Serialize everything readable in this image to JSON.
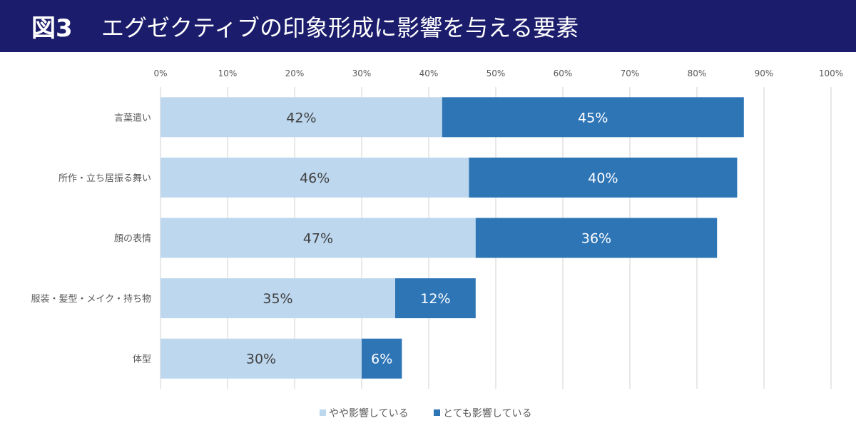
{
  "header": {
    "figure_label": "図3",
    "title": "エグゼクティブの印象形成に影響を与える要素"
  },
  "colors": {
    "header_bg": "#1b1c6b",
    "series_light": "#bdd7ee",
    "series_dark": "#2e75b6"
  },
  "chart_data": {
    "type": "bar",
    "orientation": "horizontal",
    "stacked": true,
    "title": "エグゼクティブの印象形成に影響を与える要素",
    "categories": [
      "言葉遣い",
      "所作・立ち居振る舞い",
      "顔の表情",
      "服装・髪型・メイク・持ち物",
      "体型"
    ],
    "series": [
      {
        "name": "やや影響している",
        "values": [
          42,
          46,
          47,
          35,
          30
        ],
        "labels": [
          "42%",
          "46%",
          "47%",
          "35%",
          "30%"
        ]
      },
      {
        "name": "とても影響している",
        "values": [
          45,
          40,
          36,
          12,
          6
        ],
        "labels": [
          "45%",
          "40%",
          "36%",
          "12%",
          "6%"
        ]
      }
    ],
    "xlim": [
      0,
      100
    ],
    "xticks": [
      "0%",
      "10%",
      "20%",
      "30%",
      "40%",
      "50%",
      "60%",
      "70%",
      "80%",
      "90%",
      "100%"
    ],
    "grid": true,
    "legend": "bottom"
  }
}
